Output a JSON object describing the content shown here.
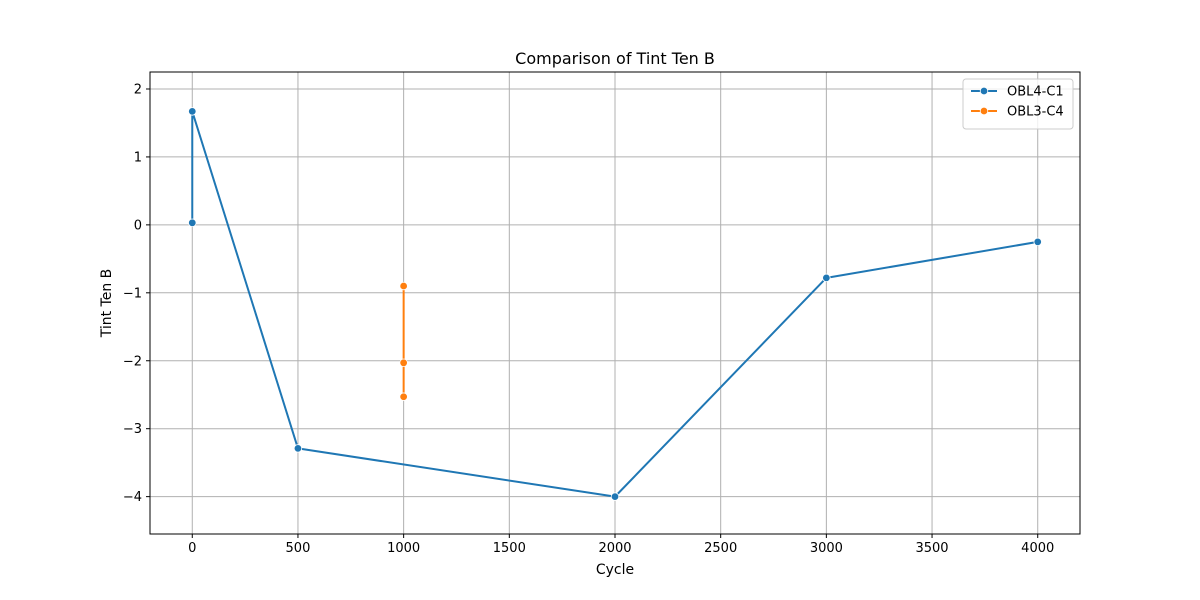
{
  "chart_data": {
    "type": "line",
    "title": "Comparison of Tint Ten B",
    "xlabel": "Cycle",
    "ylabel": "Tint Ten B",
    "xlim": [
      -200,
      4200
    ],
    "ylim": [
      -4.55,
      2.25
    ],
    "xticks": [
      0,
      500,
      1000,
      1500,
      2000,
      2500,
      3000,
      3500,
      4000
    ],
    "xtick_labels": [
      "0",
      "500",
      "1000",
      "1500",
      "2000",
      "2500",
      "3000",
      "3500",
      "4000"
    ],
    "yticks": [
      2,
      1,
      0,
      -1,
      -2,
      -3,
      -4
    ],
    "ytick_labels": [
      "2",
      "1",
      "0",
      "−1",
      "−2",
      "−3",
      "−4"
    ],
    "grid": true,
    "legend_position": "top-right",
    "series": [
      {
        "name": "OBL4-C1",
        "color": "#1f77b4",
        "marker": "circle",
        "points": [
          {
            "x": 0,
            "y": 0.03
          },
          {
            "x": 0,
            "y": 1.67
          },
          {
            "x": 500,
            "y": -3.29
          },
          {
            "x": 2000,
            "y": -4.0
          },
          {
            "x": 3000,
            "y": -0.78
          },
          {
            "x": 4000,
            "y": -0.25
          }
        ]
      },
      {
        "name": "OBL3-C4",
        "color": "#ff7f0e",
        "marker": "circle",
        "points": [
          {
            "x": 1000,
            "y": -0.9
          },
          {
            "x": 1000,
            "y": -2.03
          },
          {
            "x": 1000,
            "y": -2.53
          }
        ]
      }
    ]
  }
}
